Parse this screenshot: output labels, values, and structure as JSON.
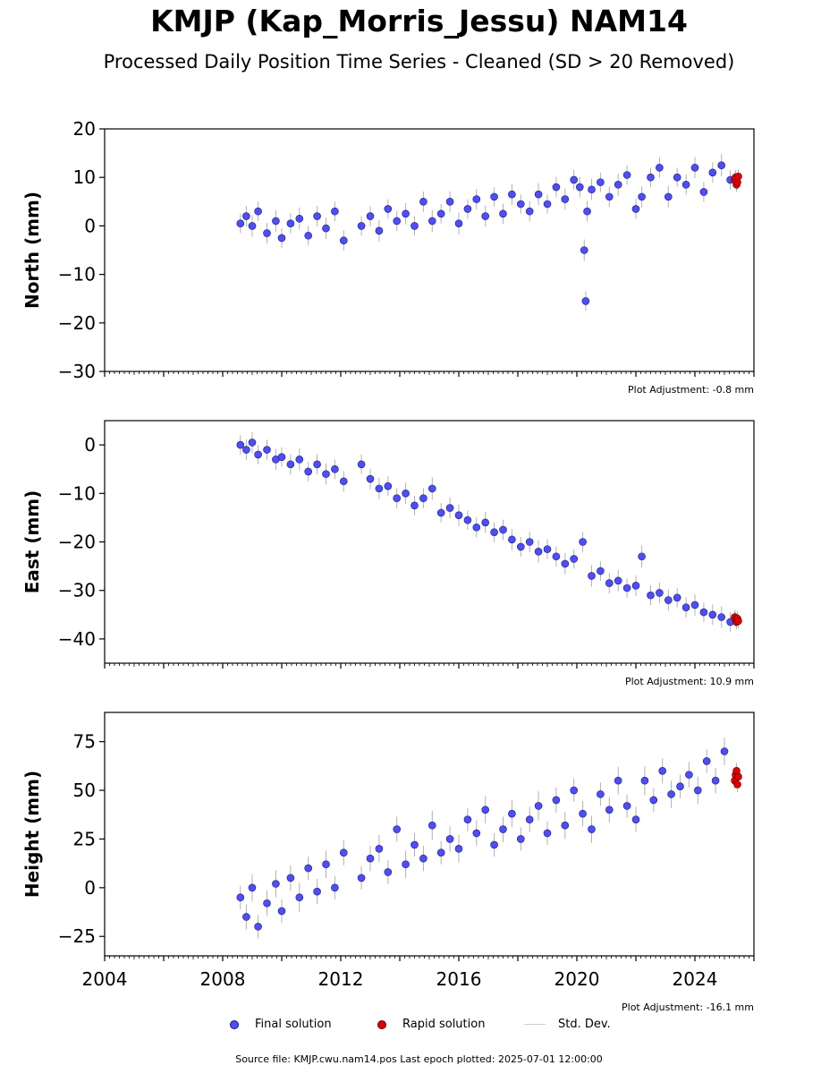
{
  "title": "KMJP (Kap_Morris_Jessu) NAM14",
  "subtitle": "Processed Daily Position Time Series - Cleaned (SD > 20 Removed)",
  "legend": {
    "final_label": "Final solution",
    "rapid_label": "Rapid solution",
    "std_label": "Std. Dev."
  },
  "footer": "Source file: KMJP.cwu.nam14.pos  Last epoch plotted: 2025-07-01 12:00:00",
  "colors": {
    "final": "#4d4dff",
    "final_edge": "#1a1a66",
    "rapid": "#e00000",
    "std_dev": "#b0b0b0"
  },
  "chart_data": [
    {
      "type": "scatter",
      "ylabel": "North (mm)",
      "adjustment_note": "Plot Adjustment: -0.8 mm",
      "xlim": [
        2004.0,
        2026.0
      ],
      "ylim": [
        -30,
        20
      ],
      "yticks": [
        20,
        10,
        0,
        -10,
        -20,
        -30
      ],
      "ytick_labels": [
        "20",
        "10",
        "0",
        "−10",
        "−20",
        "−30"
      ],
      "grid": false,
      "series": [
        {
          "name": "Final solution",
          "x": [
            2008.6,
            2008.8,
            2009.0,
            2009.2,
            2009.5,
            2009.8,
            2010.0,
            2010.3,
            2010.6,
            2010.9,
            2011.2,
            2011.5,
            2011.8,
            2012.1,
            2012.7,
            2013.0,
            2013.3,
            2013.6,
            2013.9,
            2014.2,
            2014.5,
            2014.8,
            2015.1,
            2015.4,
            2015.7,
            2016.0,
            2016.3,
            2016.6,
            2016.9,
            2017.2,
            2017.5,
            2017.8,
            2018.1,
            2018.4,
            2018.7,
            2019.0,
            2019.3,
            2019.6,
            2019.9,
            2020.1,
            2020.25,
            2020.3,
            2020.35,
            2020.5,
            2020.8,
            2021.1,
            2021.4,
            2021.7,
            2022.0,
            2022.2,
            2022.5,
            2022.8,
            2023.1,
            2023.4,
            2023.7,
            2024.0,
            2024.3,
            2024.6,
            2024.9,
            2025.2
          ],
          "y": [
            0.5,
            2.0,
            0.0,
            3.0,
            -1.5,
            1.0,
            -2.5,
            0.5,
            1.5,
            -2.0,
            2.0,
            -0.5,
            3.0,
            -3.0,
            0.0,
            2.0,
            -1.0,
            3.5,
            1.0,
            2.5,
            0.0,
            5.0,
            1.0,
            2.5,
            5.0,
            0.5,
            3.5,
            5.5,
            2.0,
            6.0,
            2.5,
            6.5,
            4.5,
            3.0,
            6.5,
            4.5,
            8.0,
            5.5,
            9.5,
            8.0,
            -5.0,
            -15.5,
            3.0,
            7.5,
            9.0,
            6.0,
            8.5,
            10.5,
            3.5,
            6.0,
            10.0,
            12.0,
            6.0,
            10.0,
            8.5,
            12.0,
            7.0,
            11.0,
            12.5,
            9.5
          ],
          "std": [
            2.0,
            2.1,
            2.2,
            2.0,
            2.1,
            2.2,
            2.0,
            2.1,
            2.3,
            2.0,
            2.1,
            2.2,
            2.0,
            2.1,
            2.0,
            2.1,
            2.2,
            2.0,
            2.1,
            2.2,
            2.0,
            2.1,
            2.3,
            2.0,
            2.1,
            2.2,
            2.0,
            2.1,
            2.2,
            2.0,
            2.1,
            2.2,
            2.0,
            2.1,
            2.3,
            2.0,
            2.1,
            2.2,
            2.0,
            2.1,
            2.2,
            2.0,
            2.1,
            2.2,
            2.0,
            2.1,
            2.3,
            2.0,
            2.1,
            2.2,
            2.0,
            2.1,
            2.2,
            2.0,
            2.1,
            2.2,
            2.0,
            2.1,
            2.3,
            2.0
          ]
        },
        {
          "name": "Rapid solution",
          "x": [
            2025.35,
            2025.38,
            2025.41,
            2025.44,
            2025.47
          ],
          "y": [
            9.5,
            10.0,
            8.5,
            9.0,
            10.2
          ],
          "std": [
            1.5,
            1.5,
            1.5,
            1.5,
            1.5
          ]
        }
      ]
    },
    {
      "type": "scatter",
      "ylabel": "East (mm)",
      "adjustment_note": "Plot Adjustment: 10.9 mm",
      "xlim": [
        2004.0,
        2026.0
      ],
      "ylim": [
        -45,
        5
      ],
      "yticks": [
        0,
        -10,
        -20,
        -30,
        -40
      ],
      "ytick_labels": [
        "0",
        "−10",
        "−20",
        "−30",
        "−40"
      ],
      "grid": false,
      "series": [
        {
          "name": "Final solution",
          "x": [
            2008.6,
            2008.8,
            2009.0,
            2009.2,
            2009.5,
            2009.8,
            2010.0,
            2010.3,
            2010.6,
            2010.9,
            2011.2,
            2011.5,
            2011.8,
            2012.1,
            2012.7,
            2013.0,
            2013.3,
            2013.6,
            2013.9,
            2014.2,
            2014.5,
            2014.8,
            2015.1,
            2015.4,
            2015.7,
            2016.0,
            2016.3,
            2016.6,
            2016.9,
            2017.2,
            2017.5,
            2017.8,
            2018.1,
            2018.4,
            2018.7,
            2019.0,
            2019.3,
            2019.6,
            2019.9,
            2020.2,
            2020.5,
            2020.8,
            2021.1,
            2021.4,
            2021.7,
            2022.0,
            2022.2,
            2022.5,
            2022.8,
            2023.1,
            2023.4,
            2023.7,
            2024.0,
            2024.3,
            2024.6,
            2024.9,
            2025.2
          ],
          "y": [
            0.0,
            -1.0,
            0.5,
            -2.0,
            -1.0,
            -3.0,
            -2.5,
            -4.0,
            -3.0,
            -5.5,
            -4.0,
            -6.0,
            -5.0,
            -7.5,
            -4.0,
            -7.0,
            -9.0,
            -8.5,
            -11.0,
            -10.0,
            -12.5,
            -11.0,
            -9.0,
            -14.0,
            -13.0,
            -14.5,
            -15.5,
            -17.0,
            -16.0,
            -18.0,
            -17.5,
            -19.5,
            -21.0,
            -20.0,
            -22.0,
            -21.5,
            -23.0,
            -24.5,
            -23.5,
            -20.0,
            -27.0,
            -26.0,
            -28.5,
            -28.0,
            -29.5,
            -29.0,
            -23.0,
            -31.0,
            -30.5,
            -32.0,
            -31.5,
            -33.5,
            -33.0,
            -34.5,
            -35.0,
            -35.5,
            -36.5
          ],
          "std": [
            2.0,
            2.1,
            2.2,
            2.0,
            2.1,
            2.2,
            2.0,
            2.1,
            2.3,
            2.0,
            2.1,
            2.2,
            2.0,
            2.1,
            2.0,
            2.1,
            2.2,
            2.0,
            2.1,
            2.2,
            2.0,
            2.1,
            2.3,
            2.0,
            2.1,
            2.2,
            2.0,
            2.1,
            2.2,
            2.0,
            2.1,
            2.2,
            2.0,
            2.1,
            2.3,
            2.0,
            2.1,
            2.2,
            2.0,
            2.1,
            2.2,
            2.0,
            2.1,
            2.2,
            2.0,
            2.1,
            2.3,
            2.0,
            2.1,
            2.2,
            2.0,
            2.1,
            2.2,
            2.0,
            2.1,
            2.2,
            2.0
          ]
        },
        {
          "name": "Rapid solution",
          "x": [
            2025.35,
            2025.38,
            2025.41,
            2025.44,
            2025.47
          ],
          "y": [
            -35.5,
            -36.0,
            -36.5,
            -35.8,
            -36.3
          ],
          "std": [
            1.5,
            1.5,
            1.5,
            1.5,
            1.5
          ]
        }
      ]
    },
    {
      "type": "scatter",
      "ylabel": "Height (mm)",
      "adjustment_note": "Plot Adjustment: -16.1 mm",
      "xlim": [
        2004.0,
        2026.0
      ],
      "ylim": [
        -35,
        90
      ],
      "yticks": [
        75,
        50,
        25,
        0,
        -25
      ],
      "ytick_labels": [
        "75",
        "50",
        "25",
        "0",
        "−25"
      ],
      "xticks": [
        2004,
        2008,
        2012,
        2016,
        2020,
        2024
      ],
      "xtick_labels": [
        "2004",
        "2008",
        "2012",
        "2016",
        "2020",
        "2024"
      ],
      "grid": false,
      "series": [
        {
          "name": "Final solution",
          "x": [
            2008.6,
            2008.8,
            2009.0,
            2009.2,
            2009.5,
            2009.8,
            2010.0,
            2010.3,
            2010.6,
            2010.9,
            2011.2,
            2011.5,
            2011.8,
            2012.1,
            2012.7,
            2013.0,
            2013.3,
            2013.6,
            2013.9,
            2014.2,
            2014.5,
            2014.8,
            2015.1,
            2015.4,
            2015.7,
            2016.0,
            2016.3,
            2016.6,
            2016.9,
            2017.2,
            2017.5,
            2017.8,
            2018.1,
            2018.4,
            2018.7,
            2019.0,
            2019.3,
            2019.6,
            2019.9,
            2020.2,
            2020.5,
            2020.8,
            2021.1,
            2021.4,
            2021.7,
            2022.0,
            2022.3,
            2022.6,
            2022.9,
            2023.2,
            2023.5,
            2023.8,
            2024.1,
            2024.4,
            2024.7,
            2025.0
          ],
          "y": [
            -5.0,
            -15.0,
            0.0,
            -20.0,
            -8.0,
            2.0,
            -12.0,
            5.0,
            -5.0,
            10.0,
            -2.0,
            12.0,
            0.0,
            18.0,
            5.0,
            15.0,
            20.0,
            8.0,
            30.0,
            12.0,
            22.0,
            15.0,
            32.0,
            18.0,
            25.0,
            20.0,
            35.0,
            28.0,
            40.0,
            22.0,
            30.0,
            38.0,
            25.0,
            35.0,
            42.0,
            28.0,
            45.0,
            32.0,
            50.0,
            38.0,
            30.0,
            48.0,
            40.0,
            55.0,
            42.0,
            35.0,
            55.0,
            45.0,
            60.0,
            48.0,
            52.0,
            58.0,
            50.0,
            65.0,
            55.0,
            70.0
          ],
          "std": [
            6.0,
            6.5,
            7.0,
            6.0,
            6.5,
            7.0,
            6.0,
            6.5,
            7.5,
            6.0,
            6.5,
            7.0,
            6.0,
            6.5,
            6.0,
            6.5,
            7.0,
            6.0,
            6.5,
            7.0,
            6.0,
            6.5,
            7.5,
            6.0,
            6.5,
            7.0,
            6.0,
            6.5,
            7.0,
            6.0,
            6.5,
            7.0,
            6.0,
            6.5,
            7.5,
            6.0,
            6.5,
            7.0,
            6.0,
            6.5,
            7.0,
            6.0,
            6.5,
            7.0,
            6.0,
            6.5,
            7.5,
            6.0,
            6.5,
            7.0,
            6.0,
            6.5,
            7.0,
            6.0,
            6.5,
            7.0
          ]
        },
        {
          "name": "Rapid solution",
          "x": [
            2025.35,
            2025.38,
            2025.41,
            2025.44,
            2025.47
          ],
          "y": [
            55.0,
            58.0,
            60.0,
            53.0,
            57.0
          ],
          "std": [
            4.0,
            4.0,
            4.0,
            4.0,
            4.0
          ]
        }
      ]
    }
  ]
}
